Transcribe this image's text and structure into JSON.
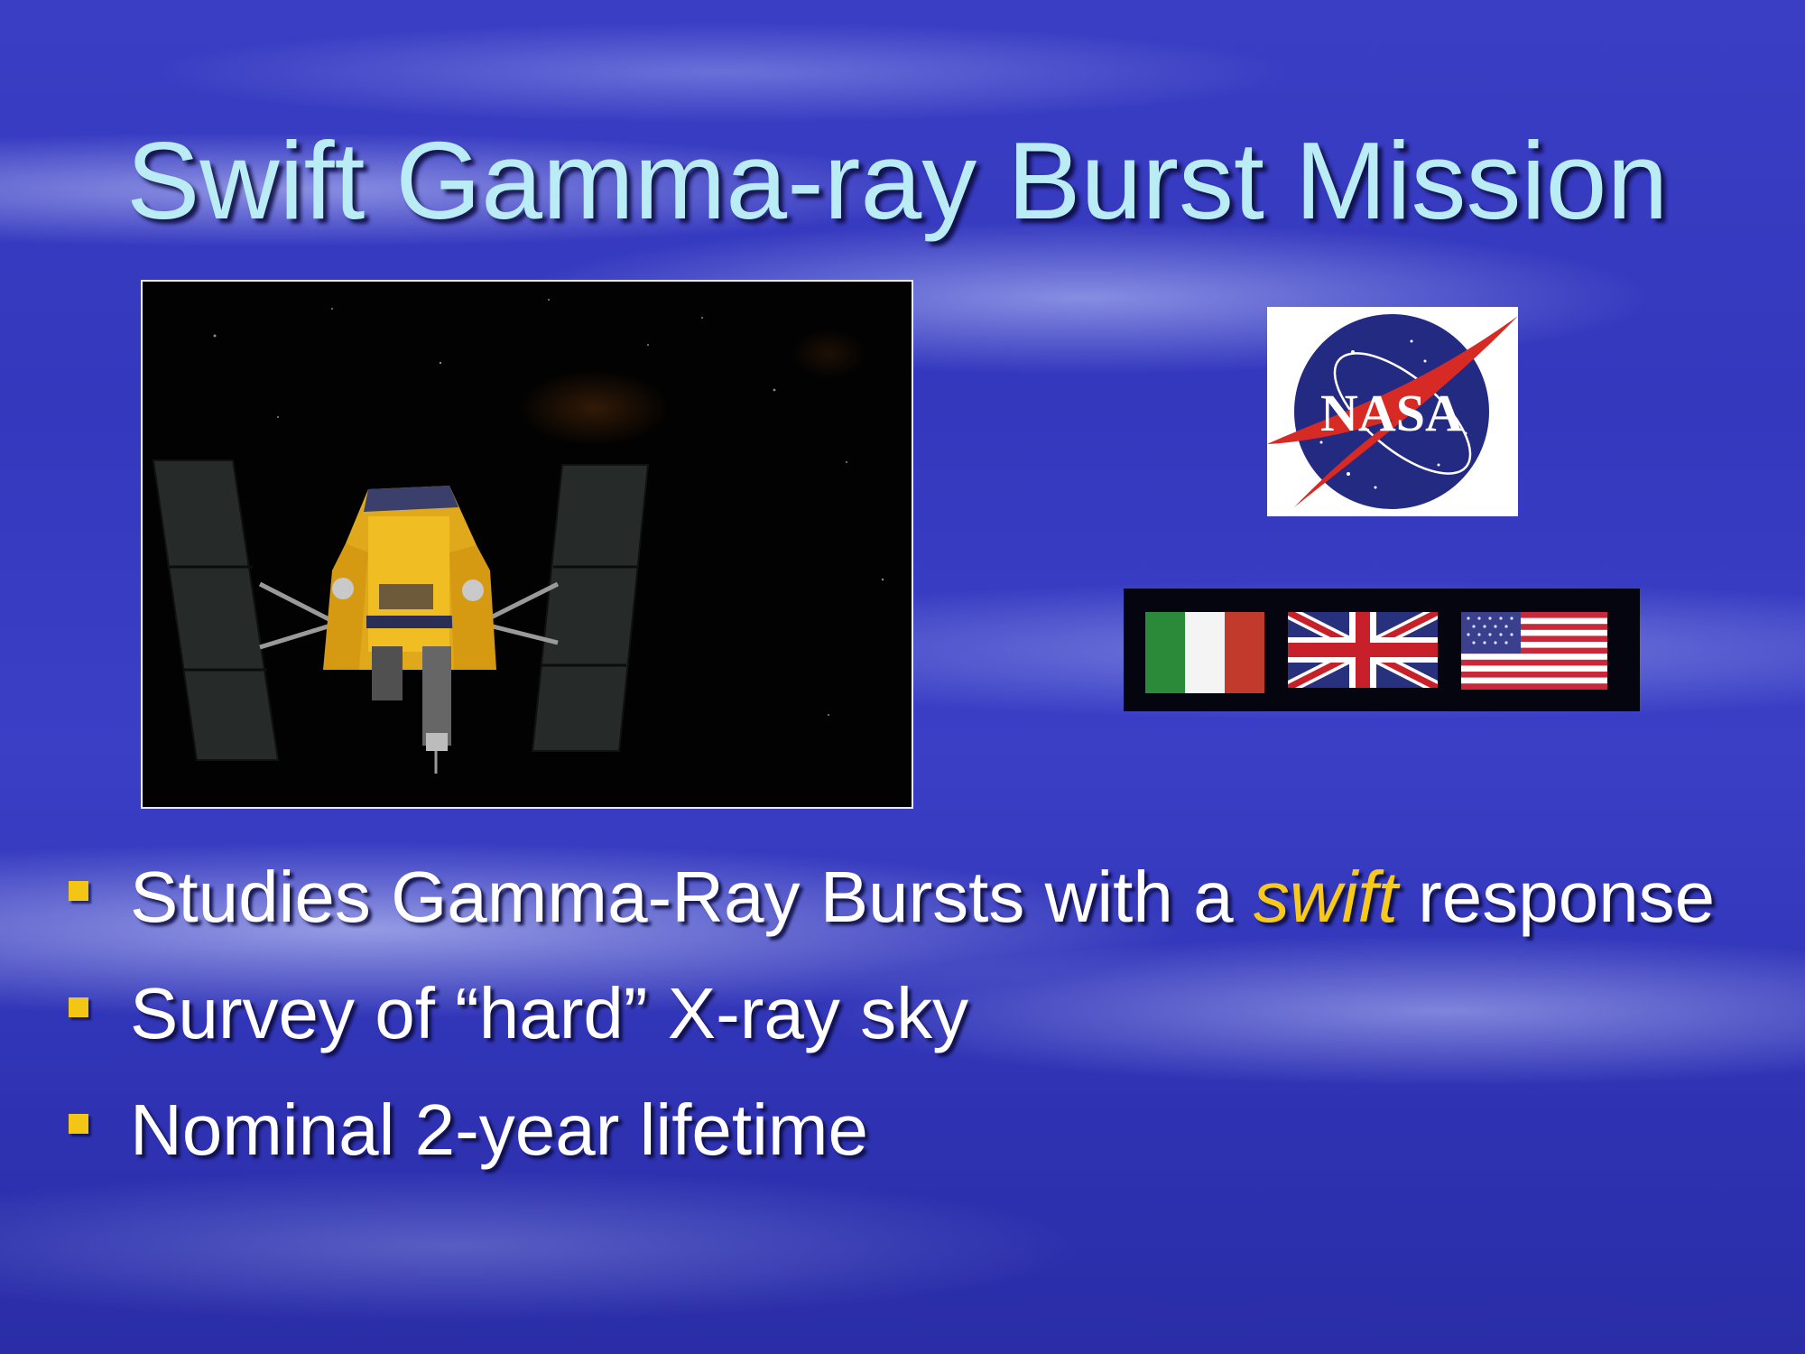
{
  "slide": {
    "title": "Swift Gamma-ray Burst Mission",
    "images": {
      "satellite": "swift-satellite-illustration",
      "logo": "nasa-meatball-logo",
      "logo_text": "NASA",
      "flags": [
        "italy-flag",
        "uk-flag",
        "usa-flag"
      ]
    },
    "bullets": [
      {
        "text_before": "Studies Gamma-Ray Bursts with a ",
        "emphasis": "swift",
        "text_after": " response"
      },
      {
        "text_before": "Survey of “hard” X-ray sky",
        "emphasis": "",
        "text_after": ""
      },
      {
        "text_before": "Nominal 2-year lifetime",
        "emphasis": "",
        "text_after": ""
      }
    ],
    "colors": {
      "title": "#b9ecf5",
      "bullet_marker": "#f3c514",
      "emphasis": "#f6c91a",
      "background": "#3438bd"
    }
  }
}
